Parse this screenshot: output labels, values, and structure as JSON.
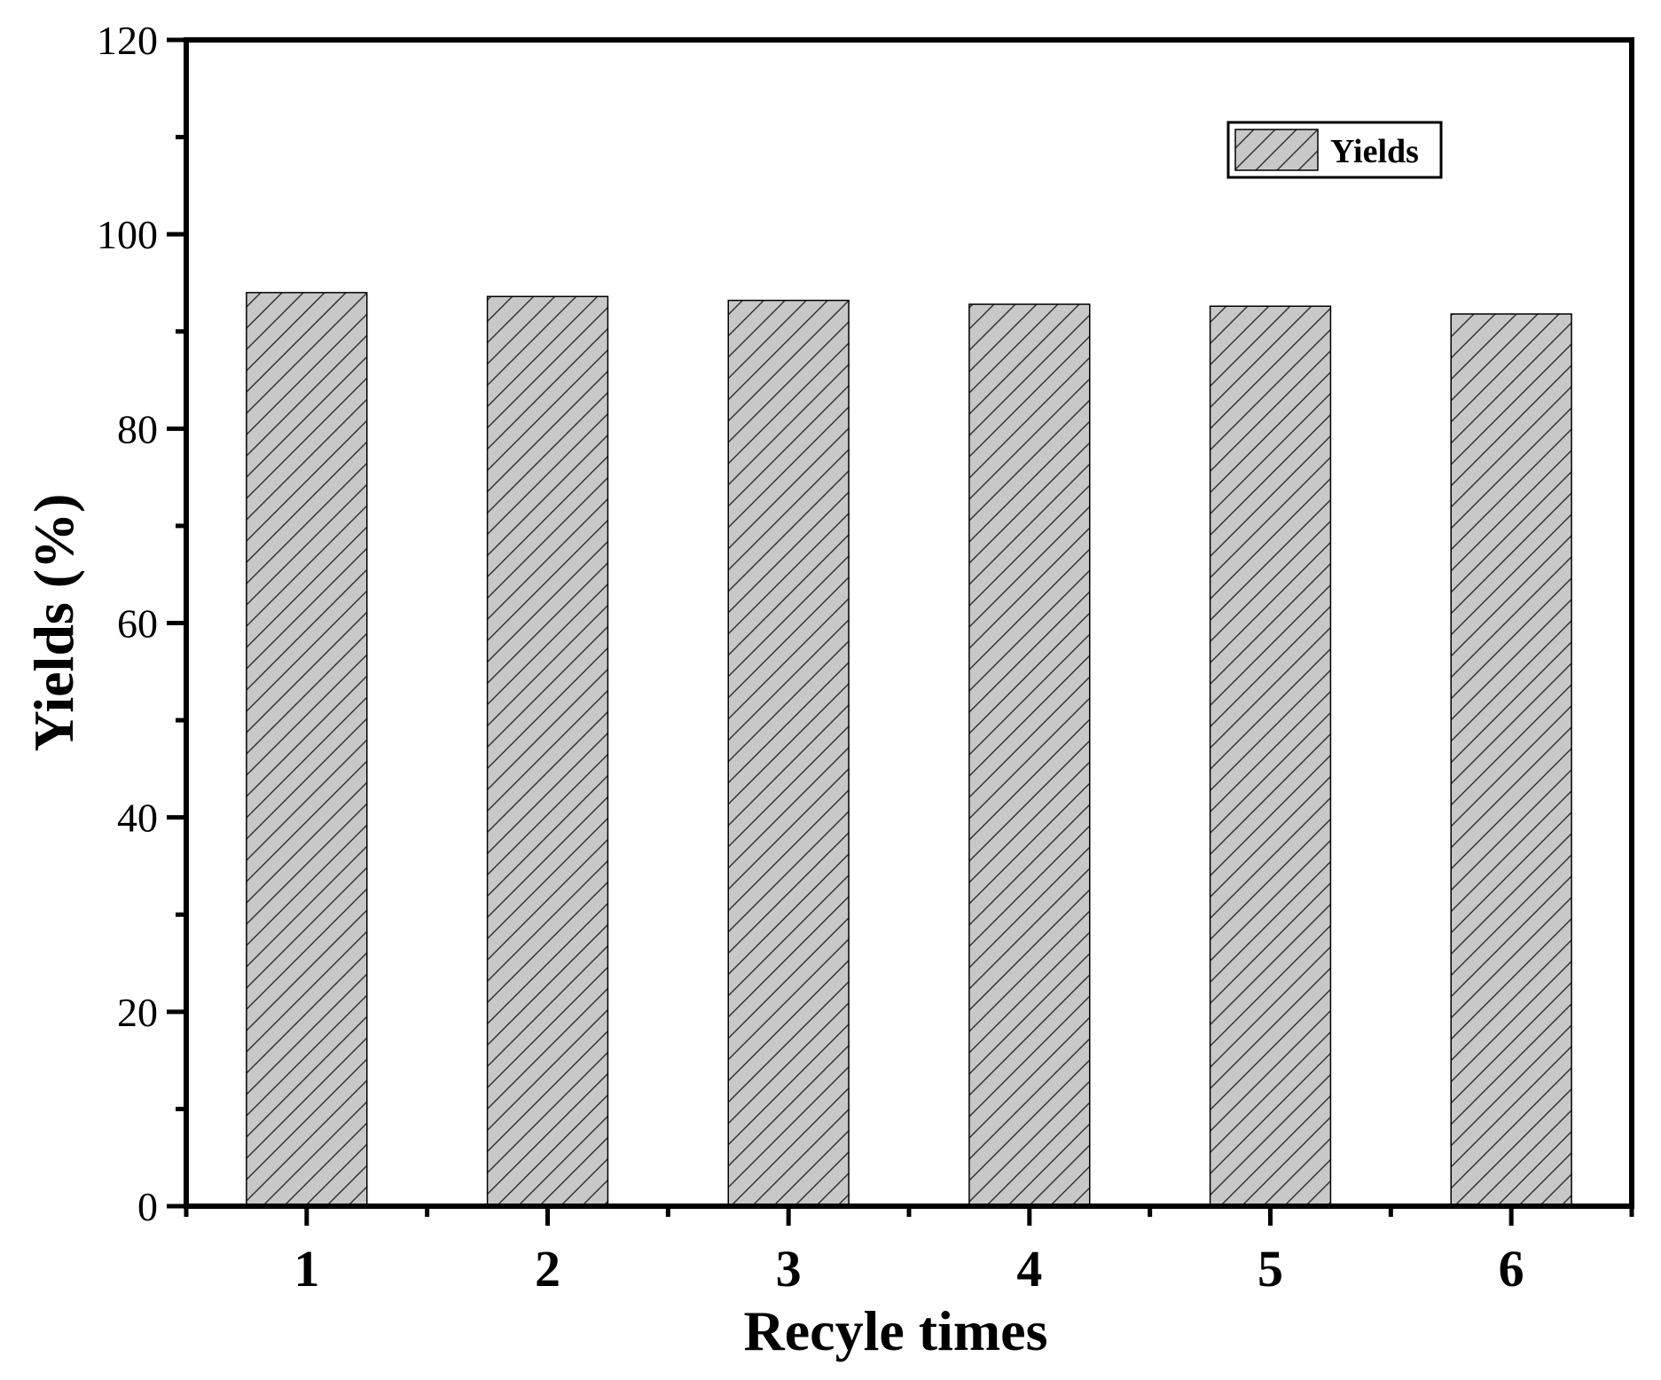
{
  "chart_data": {
    "type": "bar",
    "categories": [
      "1",
      "2",
      "3",
      "4",
      "5",
      "6"
    ],
    "series": [
      {
        "name": "Yields",
        "values": [
          94.0,
          93.6,
          93.2,
          92.8,
          92.6,
          91.8
        ]
      }
    ],
    "xlabel": "Recyle times",
    "ylabel": "Yields (%)",
    "ylim": [
      0,
      120
    ],
    "yticks": [
      0,
      20,
      40,
      60,
      80,
      100,
      120
    ],
    "grid": false,
    "legend": {
      "placement": "top-right",
      "entries": [
        "Yields"
      ]
    },
    "colors": {
      "bar_fill": "#c8c8c8",
      "bar_stroke": "#000000",
      "hatch": "#333333",
      "axis": "#000000"
    }
  }
}
